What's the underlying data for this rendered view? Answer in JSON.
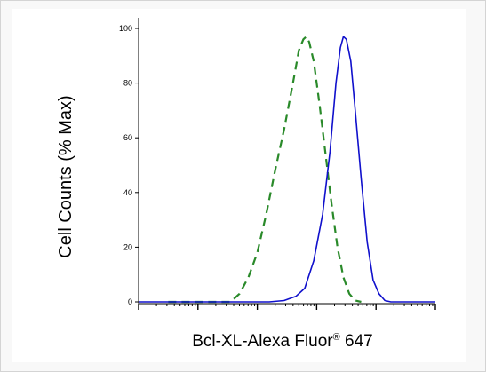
{
  "chart_data": {
    "type": "line",
    "title": "",
    "xlabel_main": "Bcl-XL-Alexa Fluor",
    "xlabel_super": "®",
    "xlabel_suffix": " 647",
    "ylabel": "Cell Counts (% Max)",
    "ylim": [
      0,
      100
    ],
    "yticks": [
      0,
      20,
      40,
      60,
      80,
      100
    ],
    "x_scale": "log",
    "grid": false,
    "legend": "none",
    "series": [
      {
        "color": "#2a8a2a",
        "style": "dashed",
        "points": [
          [
            0.1,
            0
          ],
          [
            0.31,
            0
          ],
          [
            0.34,
            3
          ],
          [
            0.37,
            9
          ],
          [
            0.4,
            18
          ],
          [
            0.43,
            32
          ],
          [
            0.46,
            48
          ],
          [
            0.49,
            63
          ],
          [
            0.52,
            80
          ],
          [
            0.54,
            92
          ],
          [
            0.555,
            96
          ],
          [
            0.565,
            97
          ],
          [
            0.575,
            95
          ],
          [
            0.59,
            88
          ],
          [
            0.61,
            72
          ],
          [
            0.63,
            54
          ],
          [
            0.65,
            36
          ],
          [
            0.67,
            20
          ],
          [
            0.69,
            9
          ],
          [
            0.71,
            3
          ],
          [
            0.73,
            0.5
          ],
          [
            0.75,
            0
          ]
        ]
      },
      {
        "color": "#1010cc",
        "style": "solid",
        "points": [
          [
            0.0,
            0
          ],
          [
            0.44,
            0
          ],
          [
            0.49,
            0.5
          ],
          [
            0.53,
            2
          ],
          [
            0.56,
            5
          ],
          [
            0.59,
            15
          ],
          [
            0.62,
            32
          ],
          [
            0.645,
            55
          ],
          [
            0.665,
            80
          ],
          [
            0.68,
            93
          ],
          [
            0.69,
            97
          ],
          [
            0.7,
            96
          ],
          [
            0.715,
            88
          ],
          [
            0.73,
            70
          ],
          [
            0.75,
            45
          ],
          [
            0.77,
            22
          ],
          [
            0.79,
            8
          ],
          [
            0.81,
            3
          ],
          [
            0.83,
            0.5
          ],
          [
            0.85,
            0
          ],
          [
            1.0,
            0
          ]
        ]
      }
    ]
  }
}
